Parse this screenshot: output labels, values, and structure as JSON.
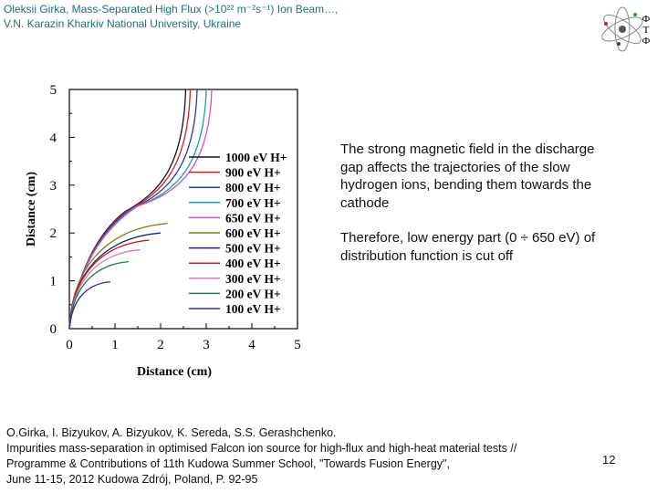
{
  "header": {
    "line1": "Oleksii Girka, Mass-Separated High Flux (>10²² m⁻²s⁻¹) Ion Beam…,",
    "line2": "V.N. Karazin Kharkiv National University, Ukraine"
  },
  "logo": {
    "letters": [
      "Ф",
      "Т",
      "Ф"
    ]
  },
  "description": {
    "p1": "The strong magnetic field in the discharge gap affects the trajectories of the slow hydrogen ions, bending them towards the cathode",
    "p2": "Therefore, low energy part (0 ÷ 650 eV) of distribution function is cut off"
  },
  "reference": {
    "line1": "O.Girka, I. Bizyukov, A. Bizyukov, K. Sereda, S.S. Gerashchenko.",
    "line2": "Impurities mass-separation in optimised Falcon ion source for high-flux and high-heat material tests //",
    "line3": "Programme & Contributions of 11th Kudowa Summer School, \"Towards Fusion Energy\",",
    "line4": "June 11-15, 2012 Kudowa Zdrój, Poland, P. 92-95"
  },
  "page_number": "12",
  "chart_data": {
    "type": "line",
    "title": "",
    "xlabel": "Distance (cm)",
    "ylabel": "Distance (cm)",
    "xlim": [
      0,
      5
    ],
    "ylim": [
      0,
      5
    ],
    "xticks": [
      "0",
      "1",
      "2",
      "3",
      "4",
      "5"
    ],
    "yticks": [
      "0",
      "1",
      "2",
      "3",
      "4",
      "5"
    ],
    "grid": false,
    "legend_position": "right",
    "series": [
      {
        "name": "1000 eV H+",
        "color": "#111111",
        "final_x": 2.55,
        "final_y": 5.0,
        "exits_top": true
      },
      {
        "name": "900 eV H+",
        "color": "#d42020",
        "final_x": 2.65,
        "final_y": 5.0,
        "exits_top": true
      },
      {
        "name": "800 eV H+",
        "color": "#2a3a9a",
        "final_x": 2.8,
        "final_y": 5.0,
        "exits_top": true
      },
      {
        "name": "700 eV H+",
        "color": "#1aa3a8",
        "final_x": 3.0,
        "final_y": 5.0,
        "exits_top": true
      },
      {
        "name": "650 eV H+",
        "color": "#d24ec8",
        "final_x": 3.12,
        "final_y": 5.0,
        "exits_top": true
      },
      {
        "name": "600 eV H+",
        "color": "#7e7a16",
        "final_x": 2.15,
        "final_y": 2.2,
        "exits_top": false
      },
      {
        "name": "500 eV H+",
        "color": "#102a6e",
        "final_x": 2.0,
        "final_y": 2.0,
        "exits_top": false
      },
      {
        "name": "400 eV H+",
        "color": "#c61e1e",
        "final_x": 1.75,
        "final_y": 1.85,
        "exits_top": false
      },
      {
        "name": "300 eV H+",
        "color": "#d877c8",
        "final_x": 1.55,
        "final_y": 1.65,
        "exits_top": false
      },
      {
        "name": "200 eV H+",
        "color": "#1f7a3c",
        "final_x": 1.3,
        "final_y": 1.4,
        "exits_top": false
      },
      {
        "name": "100 eV H+",
        "color": "#2a2a9a",
        "final_x": 0.9,
        "final_y": 0.98,
        "exits_top": false
      }
    ]
  }
}
